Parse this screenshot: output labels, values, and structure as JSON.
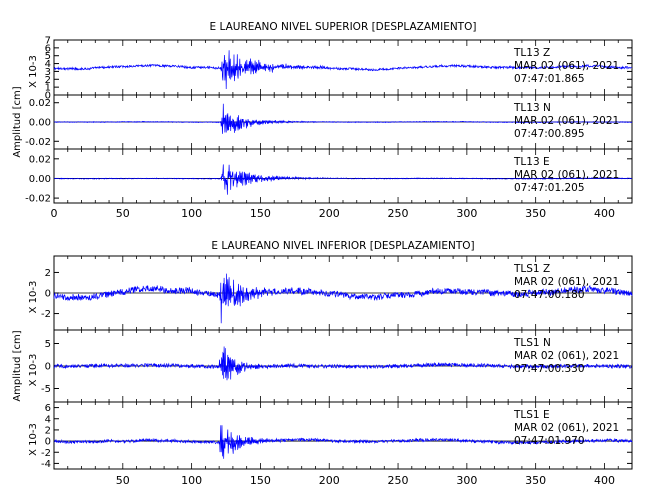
{
  "chart_data": [
    {
      "type": "line",
      "title": "E LAUREANO NIVEL SUPERIOR [DESPLAZAMIENTO]",
      "ylabel": "Amplitud [cm]",
      "xlim": [
        0,
        420
      ],
      "x_ticks": [
        "0",
        "50",
        "100",
        "150",
        "200",
        "250",
        "300",
        "350",
        "400"
      ],
      "series_color": "#0000ff",
      "panels": [
        {
          "station": "TL13",
          "component": "Z",
          "date": "MAR 02 (061), 2021",
          "time": "07:47:01.865",
          "scale_label": "X 10-3",
          "y_ticks": [
            "0",
            "1",
            "2",
            "3",
            "4",
            "5",
            "6",
            "7"
          ],
          "ylim": [
            0,
            7
          ],
          "baseline": 3.5,
          "peak": 3.3,
          "noise": 0.13,
          "long_period": 0.25,
          "onset": 121,
          "coda": 20
        },
        {
          "station": "TL13",
          "component": "N",
          "date": "MAR 02 (061), 2021",
          "time": "07:47:00.895",
          "scale_label": "",
          "y_ticks": [
            "-0.02",
            "0.00",
            "0.02"
          ],
          "ylim": [
            -0.028,
            0.028
          ],
          "baseline": 0,
          "peak": 0.021,
          "noise": 0.0004,
          "long_period": 0.0003,
          "onset": 121,
          "coda": 16
        },
        {
          "station": "TL13",
          "component": "E",
          "date": "MAR 02 (061), 2021",
          "time": "07:47:01.205",
          "scale_label": "",
          "y_ticks": [
            "-0.02",
            "0.00",
            "0.02"
          ],
          "ylim": [
            -0.025,
            0.03
          ],
          "baseline": 0,
          "peak": 0.022,
          "noise": 0.0004,
          "long_period": 0.0003,
          "onset": 121,
          "coda": 18
        }
      ]
    },
    {
      "type": "line",
      "title": "E LAUREANO NIVEL INFERIOR [DESPLAZAMIENTO]",
      "ylabel": "Amplitud [cm]",
      "xlim": [
        0,
        420
      ],
      "x_ticks": [
        "50",
        "100",
        "150",
        "200",
        "250",
        "300",
        "350",
        "400"
      ],
      "series_color": "#0000ff",
      "panels": [
        {
          "station": "TLS1",
          "component": "Z",
          "date": "MAR 02 (061), 2021",
          "time": "07:47:00.180",
          "scale_label": "X 10-3",
          "y_ticks": [
            "-2",
            "0",
            "2"
          ],
          "ylim": [
            -3.6,
            3.6
          ],
          "baseline": 0,
          "peak": 3.0,
          "noise": 0.3,
          "long_period": 0.45,
          "onset": 120,
          "coda": 14
        },
        {
          "station": "TLS1",
          "component": "N",
          "date": "MAR 02 (061), 2021",
          "time": "07:47:00.330",
          "scale_label": "X 10-3",
          "y_ticks": [
            "-5",
            "0",
            "5"
          ],
          "ylim": [
            -8,
            8
          ],
          "baseline": 0,
          "peak": 6.5,
          "noise": 0.4,
          "long_period": 0.25,
          "onset": 120,
          "coda": 10
        },
        {
          "station": "TLS1",
          "component": "E",
          "date": "MAR 02 (061), 2021",
          "time": "07:47:01.970",
          "scale_label": "X 10-3",
          "y_ticks": [
            "-4",
            "-2",
            "0",
            "2",
            "4",
            "6"
          ],
          "ylim": [
            -5,
            7
          ],
          "baseline": 0,
          "peak": 5.0,
          "noise": 0.25,
          "long_period": 0.3,
          "onset": 120,
          "coda": 12
        }
      ]
    }
  ]
}
